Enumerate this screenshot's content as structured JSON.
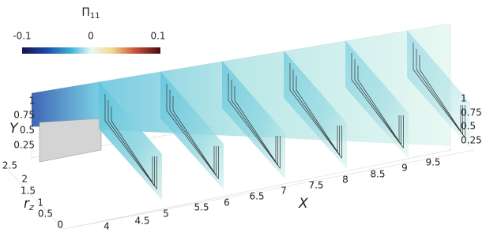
{
  "colorbar": {
    "title": "Π",
    "title_subscript": "11",
    "ticks": [
      -0.1,
      0,
      0.1
    ]
  },
  "y_axis": {
    "label": "Y",
    "ticks": [
      1,
      0.75,
      0.5,
      0.25
    ]
  },
  "y_axis_right": {
    "ticks": [
      1,
      0.75,
      0.5,
      0.25
    ]
  },
  "rz_axis": {
    "label": "r",
    "label_subscript": "z",
    "ticks": [
      2.5,
      2,
      1.5,
      1,
      0.5,
      0
    ]
  },
  "x_axis": {
    "label": "X",
    "ticks": [
      4,
      4.5,
      5,
      5.5,
      6,
      6.5,
      7,
      7.5,
      8,
      8.5,
      9,
      9.5
    ]
  }
}
